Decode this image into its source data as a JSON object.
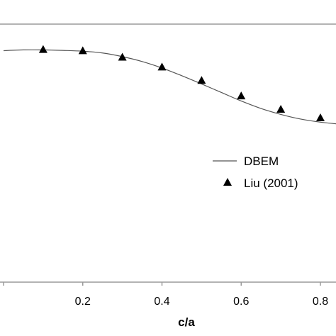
{
  "chart_data": {
    "type": "line",
    "xlabel": "c/a",
    "ylabel": "",
    "title": "",
    "x_ticks": [
      0.2,
      0.4,
      0.6,
      0.8
    ],
    "x_tick_labels": [
      "0.2",
      "0.4",
      "0.6",
      "0.8"
    ],
    "xlim": [
      0.0,
      0.85
    ],
    "ylim": [
      0.0,
      1.0
    ],
    "grid": false,
    "legend_position": "right",
    "series": [
      {
        "name": "DBEM",
        "style": "line",
        "color": "#555555",
        "x": [
          0.0,
          0.05,
          0.1,
          0.15,
          0.2,
          0.25,
          0.3,
          0.35,
          0.4,
          0.45,
          0.5,
          0.55,
          0.6,
          0.65,
          0.7,
          0.75,
          0.8,
          0.85
        ],
        "y": [
          0.897,
          0.9,
          0.9,
          0.898,
          0.895,
          0.888,
          0.874,
          0.855,
          0.83,
          0.8,
          0.768,
          0.735,
          0.702,
          0.673,
          0.65,
          0.632,
          0.62,
          0.612
        ]
      },
      {
        "name": "Liu (2001)",
        "style": "marker",
        "marker": "triangle",
        "color": "#000000",
        "x": [
          0.1,
          0.2,
          0.3,
          0.4,
          0.5,
          0.6,
          0.7,
          0.8
        ],
        "y": [
          0.9,
          0.895,
          0.87,
          0.832,
          0.78,
          0.72,
          0.668,
          0.635
        ]
      }
    ]
  }
}
